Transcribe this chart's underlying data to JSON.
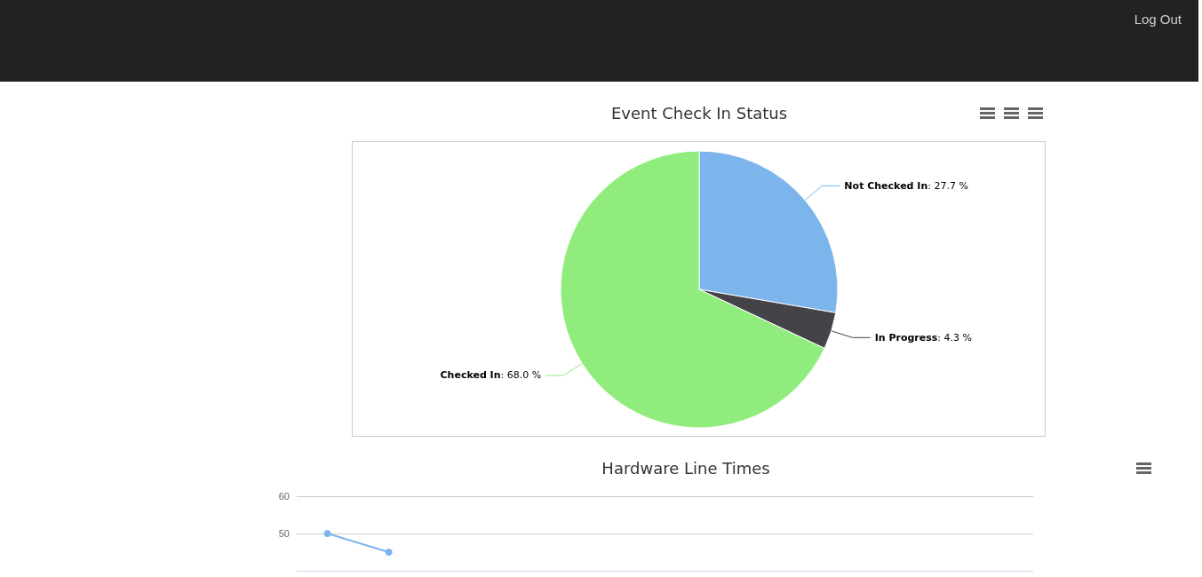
{
  "chart_data": [
    {
      "type": "pie",
      "title": "Event Check In Status",
      "annotations": [
        "Log Out"
      ],
      "categories": [
        "Not Checked In",
        "In Progress",
        "Checked In"
      ],
      "values": [
        27.7,
        4.3,
        68.0
      ],
      "value_labels": [
        ": 27.7 %",
        ": 4.3 %",
        ": 68.0 %"
      ],
      "colors": [
        "#7cb5ec",
        "#434348",
        "#90ed7d"
      ],
      "legend": false
    },
    {
      "type": "line",
      "title": "Hardware Line Times",
      "categories": [
        null,
        null,
        null,
        null,
        null,
        null,
        null,
        null,
        null,
        null,
        null,
        null
      ],
      "series": [
        {
          "color": "#7cb5ec",
          "values": [
            50,
            45,
            null,
            null,
            null,
            null,
            null,
            null,
            null,
            null,
            null,
            null
          ]
        }
      ],
      "ylim": [
        40,
        60
      ],
      "yticks": [
        50,
        60
      ],
      "grid": "y",
      "marker": "circle",
      "legend": false,
      "tick_labels": "y"
    }
  ]
}
